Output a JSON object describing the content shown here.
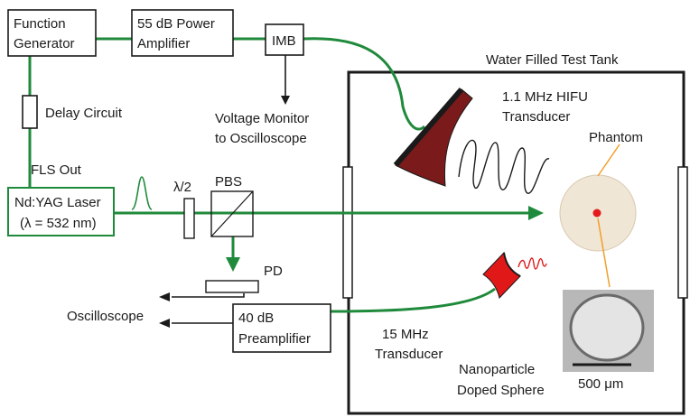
{
  "colors": {
    "beam_green": "#1f8a3b",
    "hifu_body": "#7a1a1a",
    "hifu_face": "#a0522d",
    "probe_red": "#e01818",
    "phantom_fill": "#f0e6d6",
    "phantom_dot": "#e41b1b",
    "phantom_pointer": "#f0a02a",
    "ink": "#1a1a1a"
  },
  "labels": {
    "function_generator_line1": "Function",
    "function_generator_line2": "Generator",
    "power_amp_line1": "55 dB Power",
    "power_amp_line2": "Amplifier",
    "imb": "IMB",
    "voltage_monitor_line1": "Voltage Monitor",
    "voltage_monitor_line2": "to Oscilloscope",
    "delay_circuit": "Delay Circuit",
    "fls_out": "FLS Out",
    "laser_line1": "Nd:YAG Laser",
    "laser_line2": "(λ = 532 nm)",
    "half_wave": "λ/2",
    "pbs": "PBS",
    "pd": "PD",
    "oscilloscope": "Oscilloscope",
    "preamp_line1": "40 dB",
    "preamp_line2": "Preamplifier",
    "tank_title": "Water Filled Test Tank",
    "hifu_line1": "1.1 MHz HIFU",
    "hifu_line2": "Transducer",
    "phantom": "Phantom",
    "probe_line1": "15 MHz",
    "probe_line2": "Transducer",
    "sphere_line1": "Nanoparticle",
    "sphere_line2": "Doped Sphere",
    "scale_bar": "500 μm"
  }
}
